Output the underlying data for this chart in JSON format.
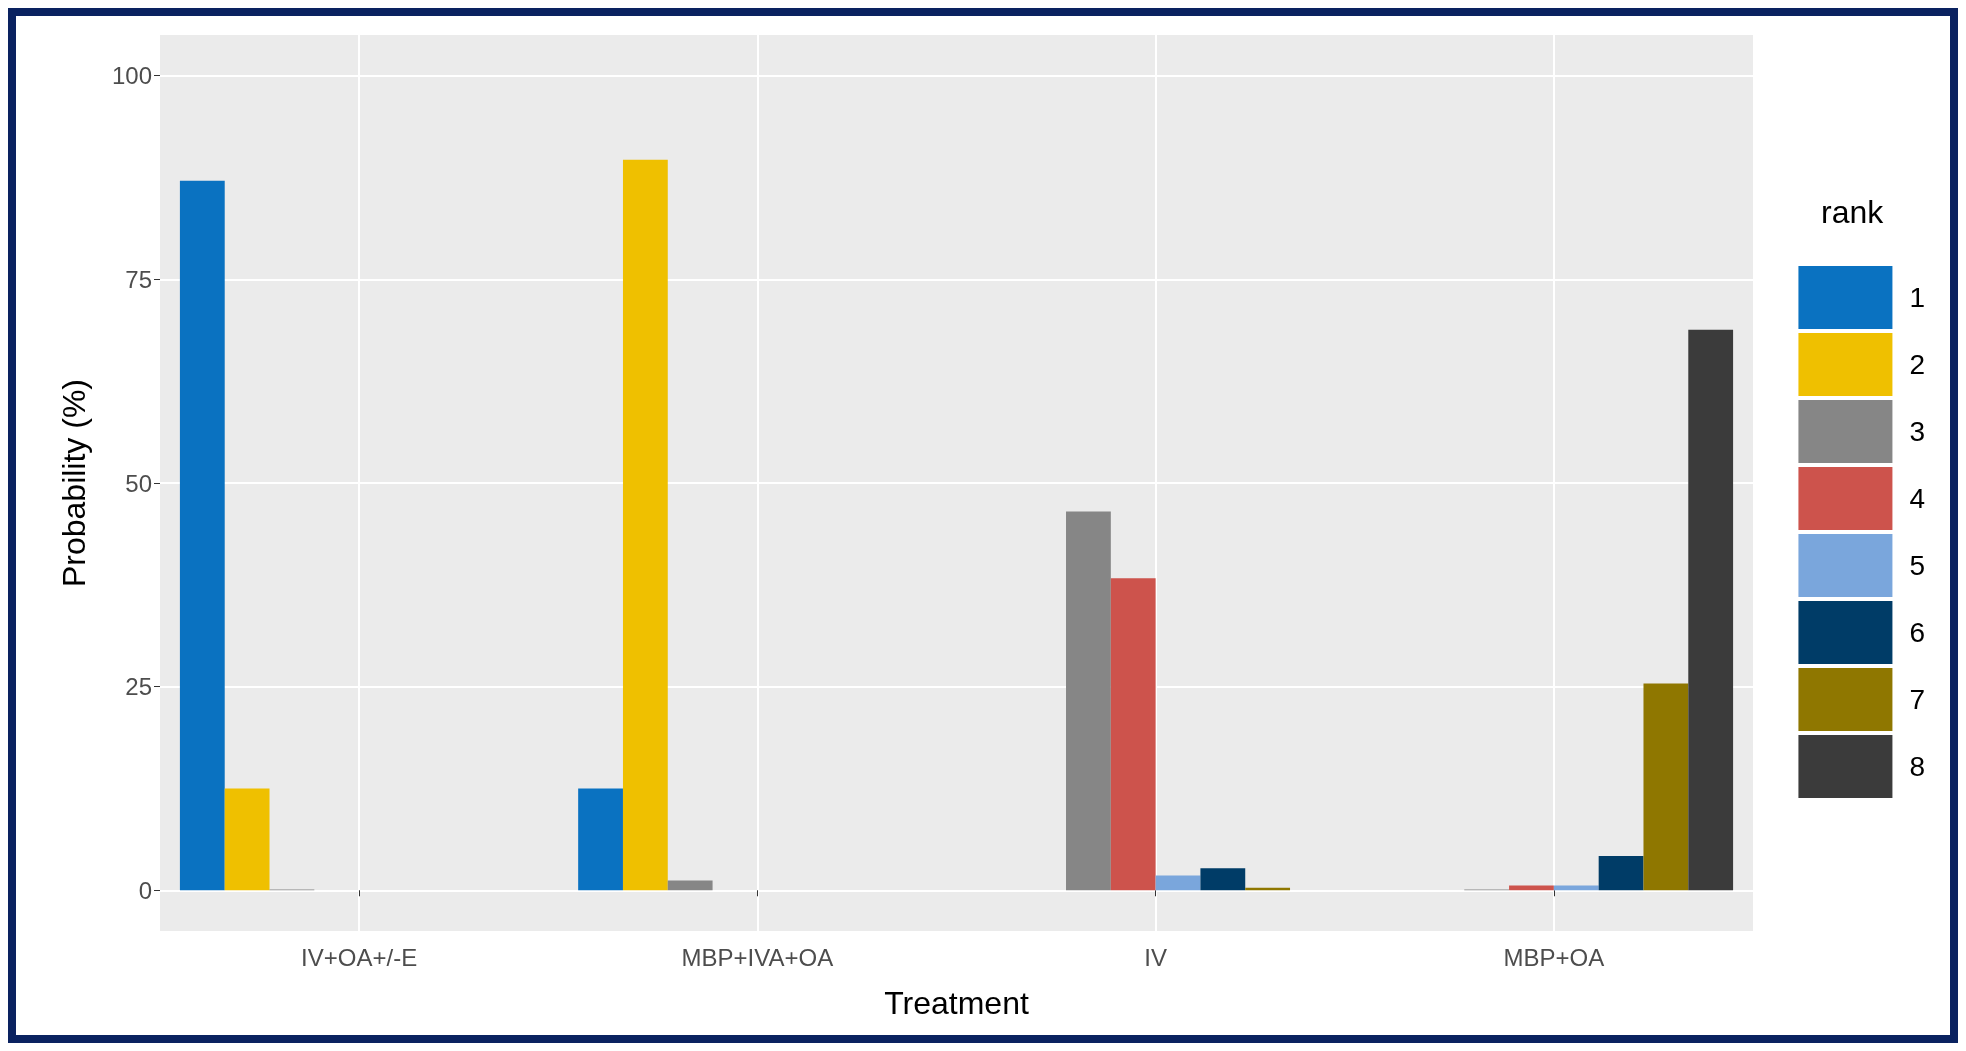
{
  "chart_data": {
    "type": "bar",
    "xlabel": "Treatment",
    "ylabel": "Probability (%)",
    "legend_title": "rank",
    "categories": [
      "IV+OA+/-E",
      "MBP+IVA+OA",
      "IV",
      "MBP+OA"
    ],
    "series": [
      {
        "name": "1",
        "color": "#0a72c1",
        "values": [
          87.1,
          12.5,
          0,
          0
        ]
      },
      {
        "name": "2",
        "color": "#efc000",
        "values": [
          12.5,
          89.7,
          0,
          0
        ]
      },
      {
        "name": "3",
        "color": "#868686",
        "values": [
          0.1,
          1.2,
          46.5,
          0.1
        ]
      },
      {
        "name": "4",
        "color": "#cd534c",
        "values": [
          0,
          0,
          38.3,
          0.6
        ]
      },
      {
        "name": "5",
        "color": "#7aa6dc",
        "values": [
          0,
          0,
          1.8,
          0.6
        ]
      },
      {
        "name": "6",
        "color": "#003c67",
        "values": [
          0,
          0,
          2.7,
          4.2
        ]
      },
      {
        "name": "7",
        "color": "#8f7700",
        "values": [
          0,
          0,
          0.3,
          25.4
        ]
      },
      {
        "name": "8",
        "color": "#3b3b3b",
        "values": [
          0,
          0,
          0,
          68.8
        ]
      }
    ],
    "ylim": [
      -5,
      105
    ],
    "yticks": [
      0,
      25,
      50,
      75,
      100
    ],
    "grid": true,
    "legend": "right"
  }
}
